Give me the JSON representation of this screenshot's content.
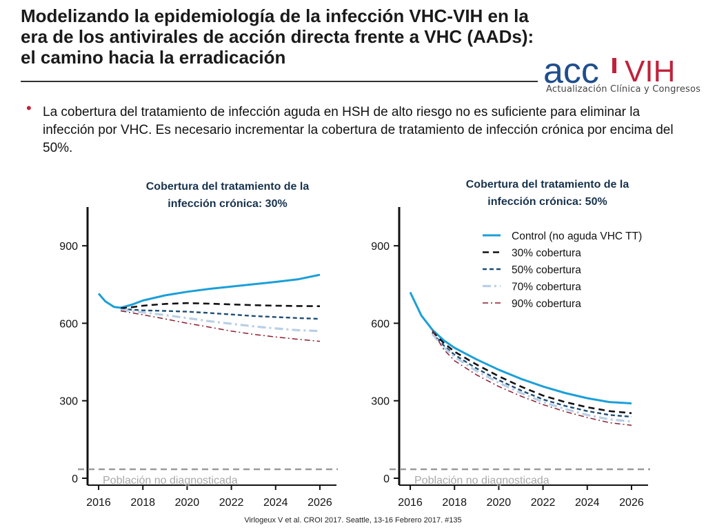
{
  "slide": {
    "title": "Modelizando la epidemiología de la infección VHC-VIH en la\nera de los antivirales de acción directa frente a VHC (AADs):\nel camino hacia la erradicación",
    "bullet": "La cobertura del tratamiento de infección aguda en HSH de alto riesgo no es suficiente para eliminar la infección por VHC. Es necesario incrementar la cobertura de tratamiento de infección crónica por encima del 50%.",
    "logo_main_a": "acc",
    "logo_main_b": "VIH",
    "logo_sub": "Actualización Clínica y Congresos",
    "citation": "Virlogeux V et al. CROI 2017. Seattle, 13-16 Febrero 2017. #135",
    "colors": {
      "logo_blue": "#1f4e8c",
      "logo_red": "#c0223b",
      "bullet": "#c0223b"
    }
  },
  "chart_data": [
    {
      "type": "line",
      "title": "Cobertura del tratamiento de la\ninfección crónica: 30%",
      "xlim": [
        2015.5,
        2026.5
      ],
      "ylim": [
        0,
        1050
      ],
      "xticks": [
        2016,
        2018,
        2020,
        2022,
        2024,
        2026
      ],
      "yticks": [
        0,
        300,
        600,
        900
      ],
      "reference_line": {
        "y": 40,
        "label": "Población no diagnosticada",
        "color": "#9a9a9a"
      },
      "series": [
        {
          "name": "Control (no aguda VHC TT)",
          "color": "#1a9fd8",
          "dash": "solid",
          "x": [
            2016,
            2016.3,
            2016.7,
            2017,
            2017.5,
            2018,
            2019,
            2020,
            2021,
            2022,
            2023,
            2024,
            2025,
            2026
          ],
          "y": [
            715,
            685,
            663,
            660,
            672,
            688,
            708,
            722,
            733,
            742,
            751,
            760,
            770,
            788
          ]
        },
        {
          "name": "30% cobertura",
          "color": "#111111",
          "dash": "long",
          "x": [
            2017,
            2017.5,
            2018,
            2019,
            2020,
            2021,
            2022,
            2023,
            2024,
            2025,
            2026
          ],
          "y": [
            658,
            662,
            668,
            675,
            678,
            676,
            673,
            670,
            668,
            667,
            666
          ]
        },
        {
          "name": "50% cobertura",
          "color": "#1e4d74",
          "dash": "medium",
          "x": [
            2017,
            2018,
            2019,
            2020,
            2021,
            2022,
            2023,
            2024,
            2025,
            2026
          ],
          "y": [
            655,
            650,
            648,
            645,
            640,
            634,
            628,
            624,
            620,
            617
          ]
        },
        {
          "name": "70% cobertura",
          "color": "#b8cfe6",
          "dash": "dashdot",
          "x": [
            2017,
            2018,
            2019,
            2020,
            2021,
            2022,
            2023,
            2024,
            2025,
            2026
          ],
          "y": [
            652,
            642,
            632,
            620,
            608,
            598,
            588,
            580,
            573,
            570
          ]
        },
        {
          "name": "90% cobertura",
          "color": "#8b1c2e",
          "dash": "dashdot-thin",
          "x": [
            2017,
            2018,
            2019,
            2020,
            2021,
            2022,
            2023,
            2024,
            2025,
            2026
          ],
          "y": [
            648,
            633,
            617,
            600,
            585,
            570,
            557,
            547,
            538,
            530
          ]
        }
      ]
    },
    {
      "type": "line",
      "title": "Cobertura del tratamiento de la\ninfección crónica: 50%",
      "xlim": [
        2015.5,
        2026.5
      ],
      "ylim": [
        0,
        1050
      ],
      "xticks": [
        2016,
        2018,
        2020,
        2022,
        2024,
        2026
      ],
      "yticks": [
        0,
        300,
        600,
        900
      ],
      "legend": "top-right",
      "reference_line": {
        "y": 40,
        "label": "Población no diagnosticada",
        "color": "#9a9a9a"
      },
      "series": [
        {
          "name": "Control (no aguda VHC TT)",
          "color": "#1a9fd8",
          "dash": "solid",
          "x": [
            2016,
            2016.5,
            2017,
            2017.5,
            2018,
            2019,
            2020,
            2021,
            2022,
            2023,
            2024,
            2025,
            2026
          ],
          "y": [
            720,
            630,
            575,
            535,
            505,
            460,
            420,
            385,
            355,
            330,
            310,
            295,
            290
          ]
        },
        {
          "name": "30% cobertura",
          "color": "#111111",
          "dash": "long",
          "x": [
            2017,
            2017.5,
            2018,
            2019,
            2020,
            2021,
            2022,
            2023,
            2024,
            2025,
            2026
          ],
          "y": [
            568,
            525,
            490,
            440,
            395,
            355,
            320,
            295,
            275,
            260,
            252
          ]
        },
        {
          "name": "50% cobertura",
          "color": "#1e4d74",
          "dash": "medium",
          "x": [
            2017,
            2017.5,
            2018,
            2019,
            2020,
            2021,
            2022,
            2023,
            2024,
            2025,
            2026
          ],
          "y": [
            562,
            515,
            478,
            425,
            380,
            340,
            305,
            280,
            260,
            245,
            238
          ]
        },
        {
          "name": "70% cobertura",
          "color": "#b8cfe6",
          "dash": "dashdot",
          "x": [
            2017,
            2017.5,
            2018,
            2019,
            2020,
            2021,
            2022,
            2023,
            2024,
            2025,
            2026
          ],
          "y": [
            558,
            508,
            470,
            415,
            370,
            330,
            295,
            268,
            245,
            228,
            220
          ]
        },
        {
          "name": "90% cobertura",
          "color": "#8b1c2e",
          "dash": "dashdot-thin",
          "x": [
            2017,
            2017.5,
            2018,
            2019,
            2020,
            2021,
            2022,
            2023,
            2024,
            2025,
            2026
          ],
          "y": [
            572,
            500,
            455,
            400,
            355,
            318,
            285,
            258,
            235,
            215,
            205
          ]
        }
      ]
    }
  ]
}
